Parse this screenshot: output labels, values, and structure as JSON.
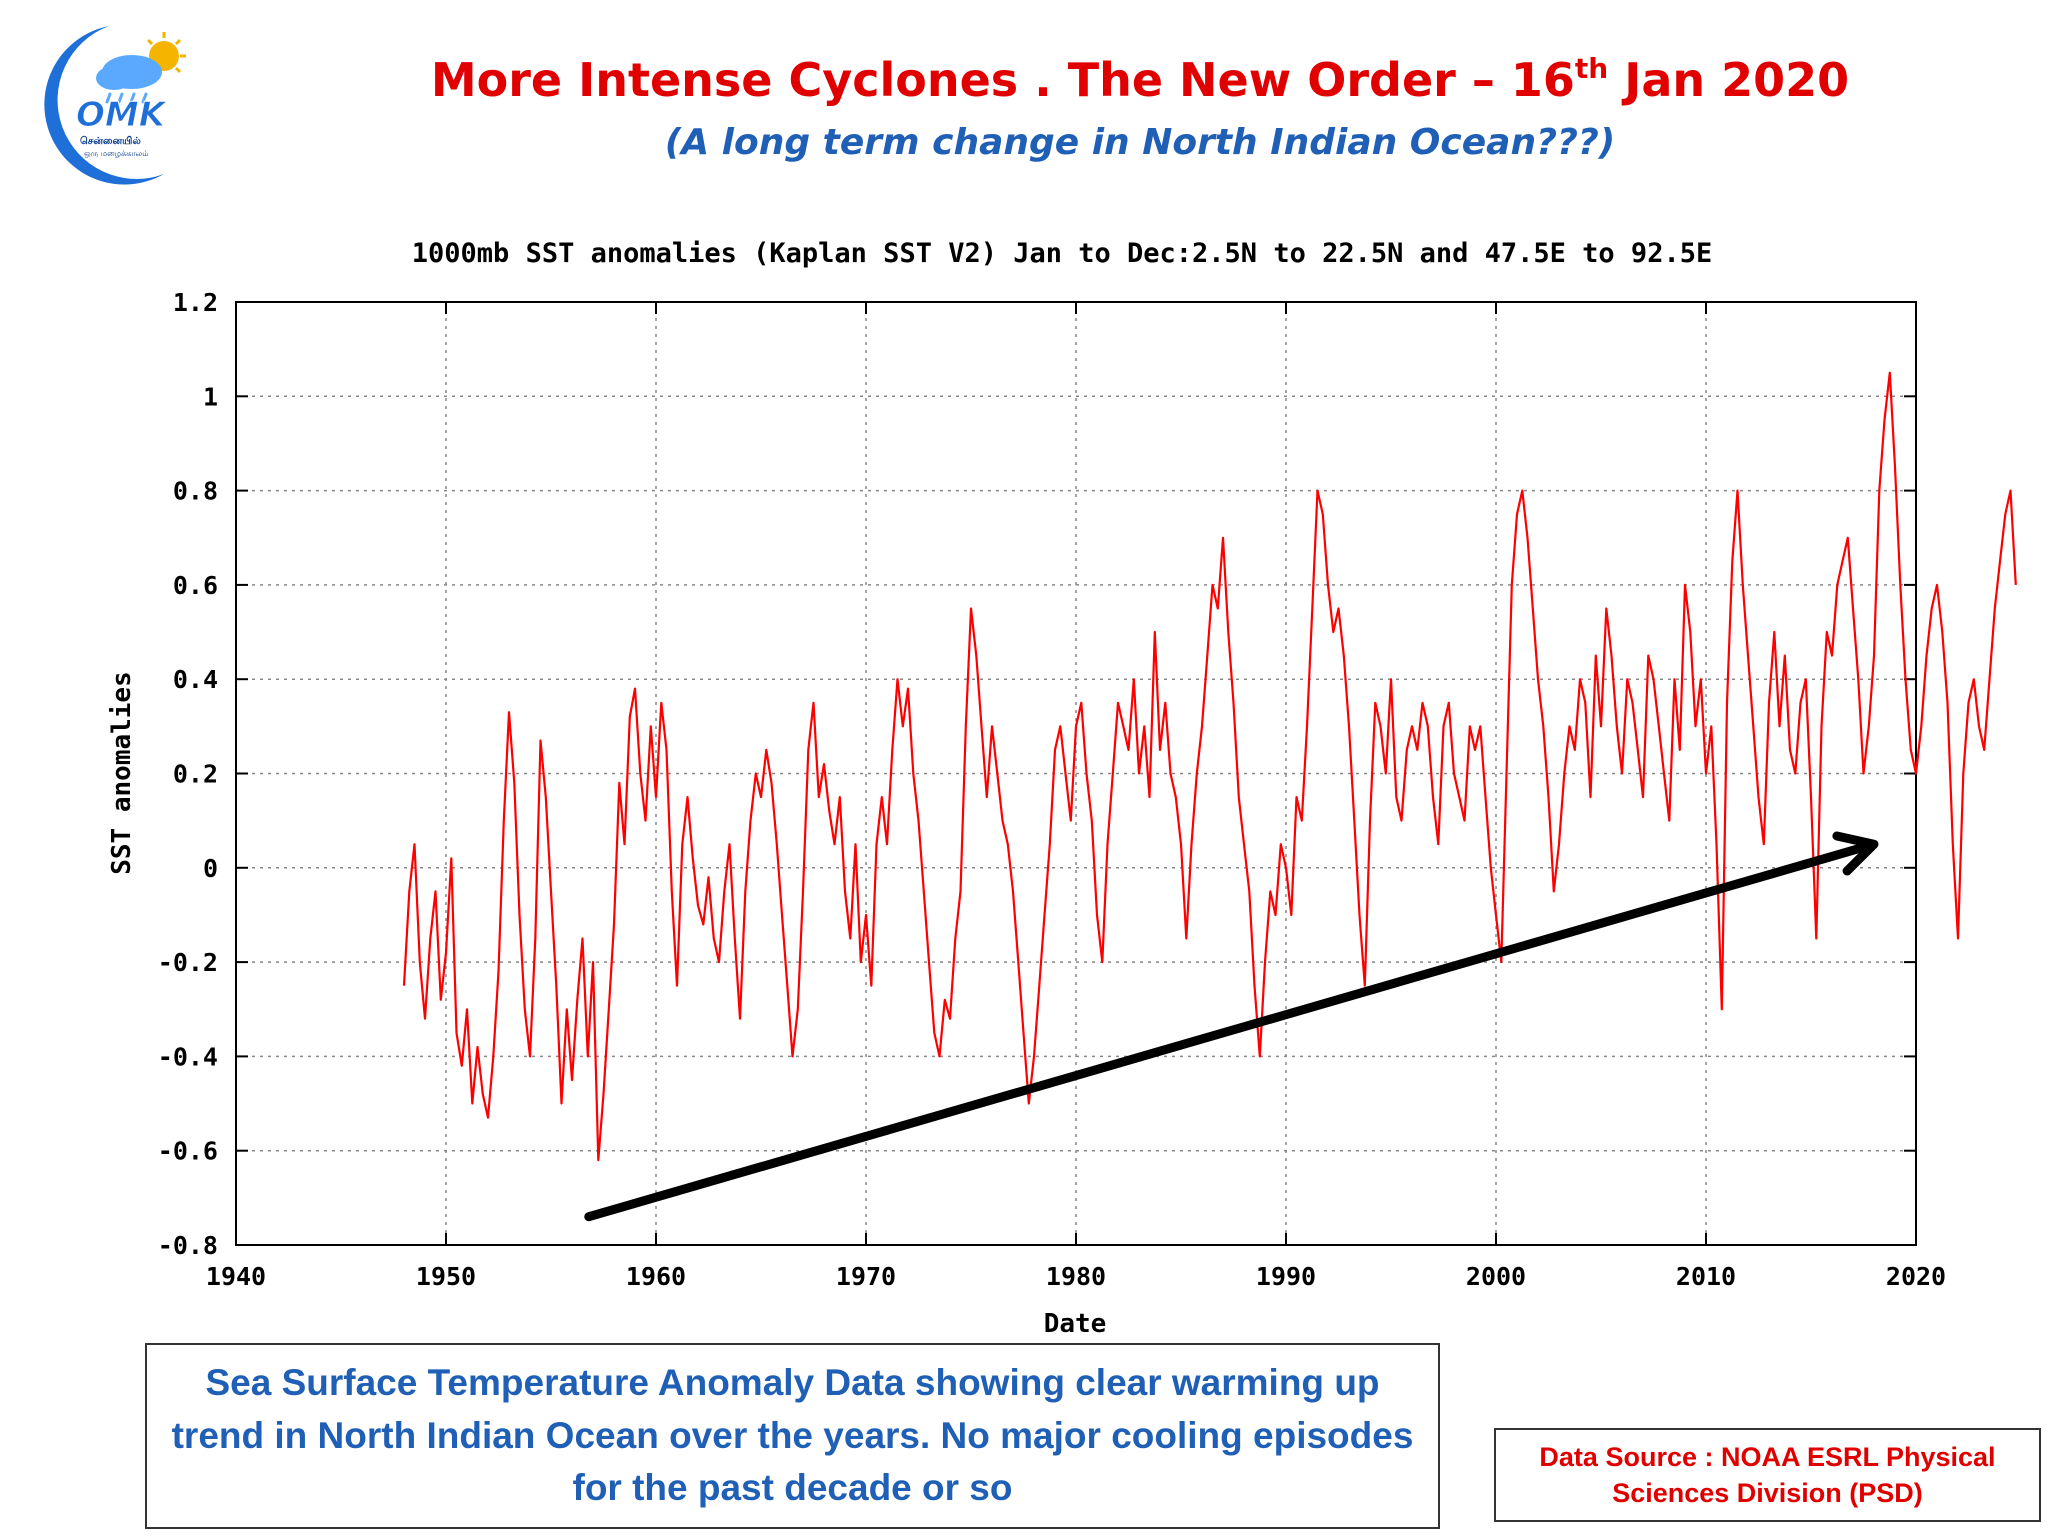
{
  "header": {
    "title_main": "More Intense Cyclones . The New Order – 16",
    "title_sup": "th",
    "title_tail": " Jan 2020",
    "subtitle": "(A long term change in North Indian Ocean???)"
  },
  "logo": {
    "text": "OMK",
    "tamil_line1": "சென்னையில்",
    "tamil_line2": "ஒரு மழைக்காலம்",
    "icon": "cloud-sun-icon"
  },
  "chart_data": {
    "type": "line",
    "title": "1000mb SST anomalies (Kaplan SST V2) Jan to Dec:2.5N to 22.5N and 47.5E to 92.5E",
    "xlabel": "Date",
    "ylabel": "SST anomalies",
    "xlim": [
      1940,
      2020
    ],
    "ylim": [
      -0.8,
      1.2
    ],
    "xticks": [
      1940,
      1950,
      1960,
      1970,
      1980,
      1990,
      2000,
      2010,
      2020
    ],
    "yticks": [
      -0.8,
      -0.6,
      -0.4,
      -0.2,
      0,
      0.2,
      0.4,
      0.6,
      0.8,
      1,
      1.2
    ],
    "ytick_labels": [
      "-0.8",
      "-0.6",
      "-0.4",
      "-0.2",
      "0",
      "0.2",
      "0.4",
      "0.6",
      "0.8",
      "1",
      "1.2"
    ],
    "grid": true,
    "line_color": "#ff0000",
    "series": [
      {
        "x_start": 1948.0,
        "x_step": 0.25,
        "values": [
          -0.25,
          -0.05,
          0.05,
          -0.2,
          -0.32,
          -0.15,
          -0.05,
          -0.28,
          -0.18,
          0.02,
          -0.35,
          -0.42,
          -0.3,
          -0.5,
          -0.38,
          -0.48,
          -0.53,
          -0.4,
          -0.22,
          0.1,
          0.33,
          0.18,
          -0.1,
          -0.3,
          -0.4,
          -0.15,
          0.27,
          0.15,
          -0.05,
          -0.25,
          -0.5,
          -0.3,
          -0.45,
          -0.28,
          -0.15,
          -0.4,
          -0.2,
          -0.62,
          -0.48,
          -0.3,
          -0.12,
          0.18,
          0.05,
          0.32,
          0.38,
          0.2,
          0.1,
          0.3,
          0.15,
          0.35,
          0.25,
          -0.05,
          -0.25,
          0.05,
          0.15,
          0.02,
          -0.08,
          -0.12,
          -0.02,
          -0.15,
          -0.2,
          -0.05,
          0.05,
          -0.15,
          -0.32,
          -0.05,
          0.1,
          0.2,
          0.15,
          0.25,
          0.18,
          0.05,
          -0.1,
          -0.25,
          -0.4,
          -0.3,
          -0.05,
          0.25,
          0.35,
          0.15,
          0.22,
          0.12,
          0.05,
          0.15,
          -0.05,
          -0.15,
          0.05,
          -0.2,
          -0.1,
          -0.25,
          0.05,
          0.15,
          0.05,
          0.25,
          0.4,
          0.3,
          0.38,
          0.2,
          0.1,
          -0.05,
          -0.2,
          -0.35,
          -0.4,
          -0.28,
          -0.32,
          -0.15,
          -0.05,
          0.3,
          0.55,
          0.45,
          0.3,
          0.15,
          0.3,
          0.2,
          0.1,
          0.05,
          -0.05,
          -0.2,
          -0.35,
          -0.5,
          -0.4,
          -0.25,
          -0.1,
          0.05,
          0.25,
          0.3,
          0.2,
          0.1,
          0.3,
          0.35,
          0.2,
          0.1,
          -0.1,
          -0.2,
          0.05,
          0.2,
          0.35,
          0.3,
          0.25,
          0.4,
          0.2,
          0.3,
          0.15,
          0.5,
          0.25,
          0.35,
          0.2,
          0.15,
          0.05,
          -0.15,
          0.05,
          0.2,
          0.3,
          0.45,
          0.6,
          0.55,
          0.7,
          0.5,
          0.35,
          0.15,
          0.05,
          -0.05,
          -0.25,
          -0.4,
          -0.2,
          -0.05,
          -0.1,
          0.05,
          0.0,
          -0.1,
          0.15,
          0.1,
          0.3,
          0.55,
          0.8,
          0.75,
          0.6,
          0.5,
          0.55,
          0.45,
          0.3,
          0.1,
          -0.1,
          -0.25,
          0.1,
          0.35,
          0.3,
          0.2,
          0.4,
          0.15,
          0.1,
          0.25,
          0.3,
          0.25,
          0.35,
          0.3,
          0.15,
          0.05,
          0.3,
          0.35,
          0.2,
          0.15,
          0.1,
          0.3,
          0.25,
          0.3,
          0.15,
          0.0,
          -0.1,
          -0.2,
          0.2,
          0.6,
          0.75,
          0.8,
          0.7,
          0.55,
          0.4,
          0.3,
          0.15,
          -0.05,
          0.05,
          0.2,
          0.3,
          0.25,
          0.4,
          0.35,
          0.15,
          0.45,
          0.3,
          0.55,
          0.45,
          0.3,
          0.2,
          0.4,
          0.35,
          0.25,
          0.15,
          0.45,
          0.4,
          0.3,
          0.2,
          0.1,
          0.4,
          0.25,
          0.6,
          0.5,
          0.3,
          0.4,
          0.2,
          0.3,
          0.05,
          -0.3,
          0.35,
          0.65,
          0.8,
          0.6,
          0.45,
          0.3,
          0.15,
          0.05,
          0.35,
          0.5,
          0.3,
          0.45,
          0.25,
          0.2,
          0.35,
          0.4,
          0.15,
          -0.15,
          0.3,
          0.5,
          0.45,
          0.6,
          0.65,
          0.7,
          0.55,
          0.4,
          0.2,
          0.3,
          0.45,
          0.8,
          0.95,
          1.05,
          0.85,
          0.6,
          0.4,
          0.25,
          0.2,
          0.3,
          0.45,
          0.55,
          0.6,
          0.5,
          0.35,
          0.05,
          -0.15,
          0.2,
          0.35,
          0.4,
          0.3,
          0.25,
          0.4,
          0.55,
          0.65,
          0.75,
          0.8,
          0.6
        ]
      }
    ]
  },
  "annotation": {
    "arrow": "trend-arrow",
    "x_from": 1956.8,
    "y_from": -0.74,
    "x_to": 2018.0,
    "y_to": 0.05,
    "color": "#000000"
  },
  "caption": "Sea Surface Temperature Anomaly Data showing clear warming up trend in North Indian Ocean over the years. No major cooling episodes  for the past decade or so",
  "source": "Data Source : NOAA ESRL Physical Sciences Division (PSD)"
}
